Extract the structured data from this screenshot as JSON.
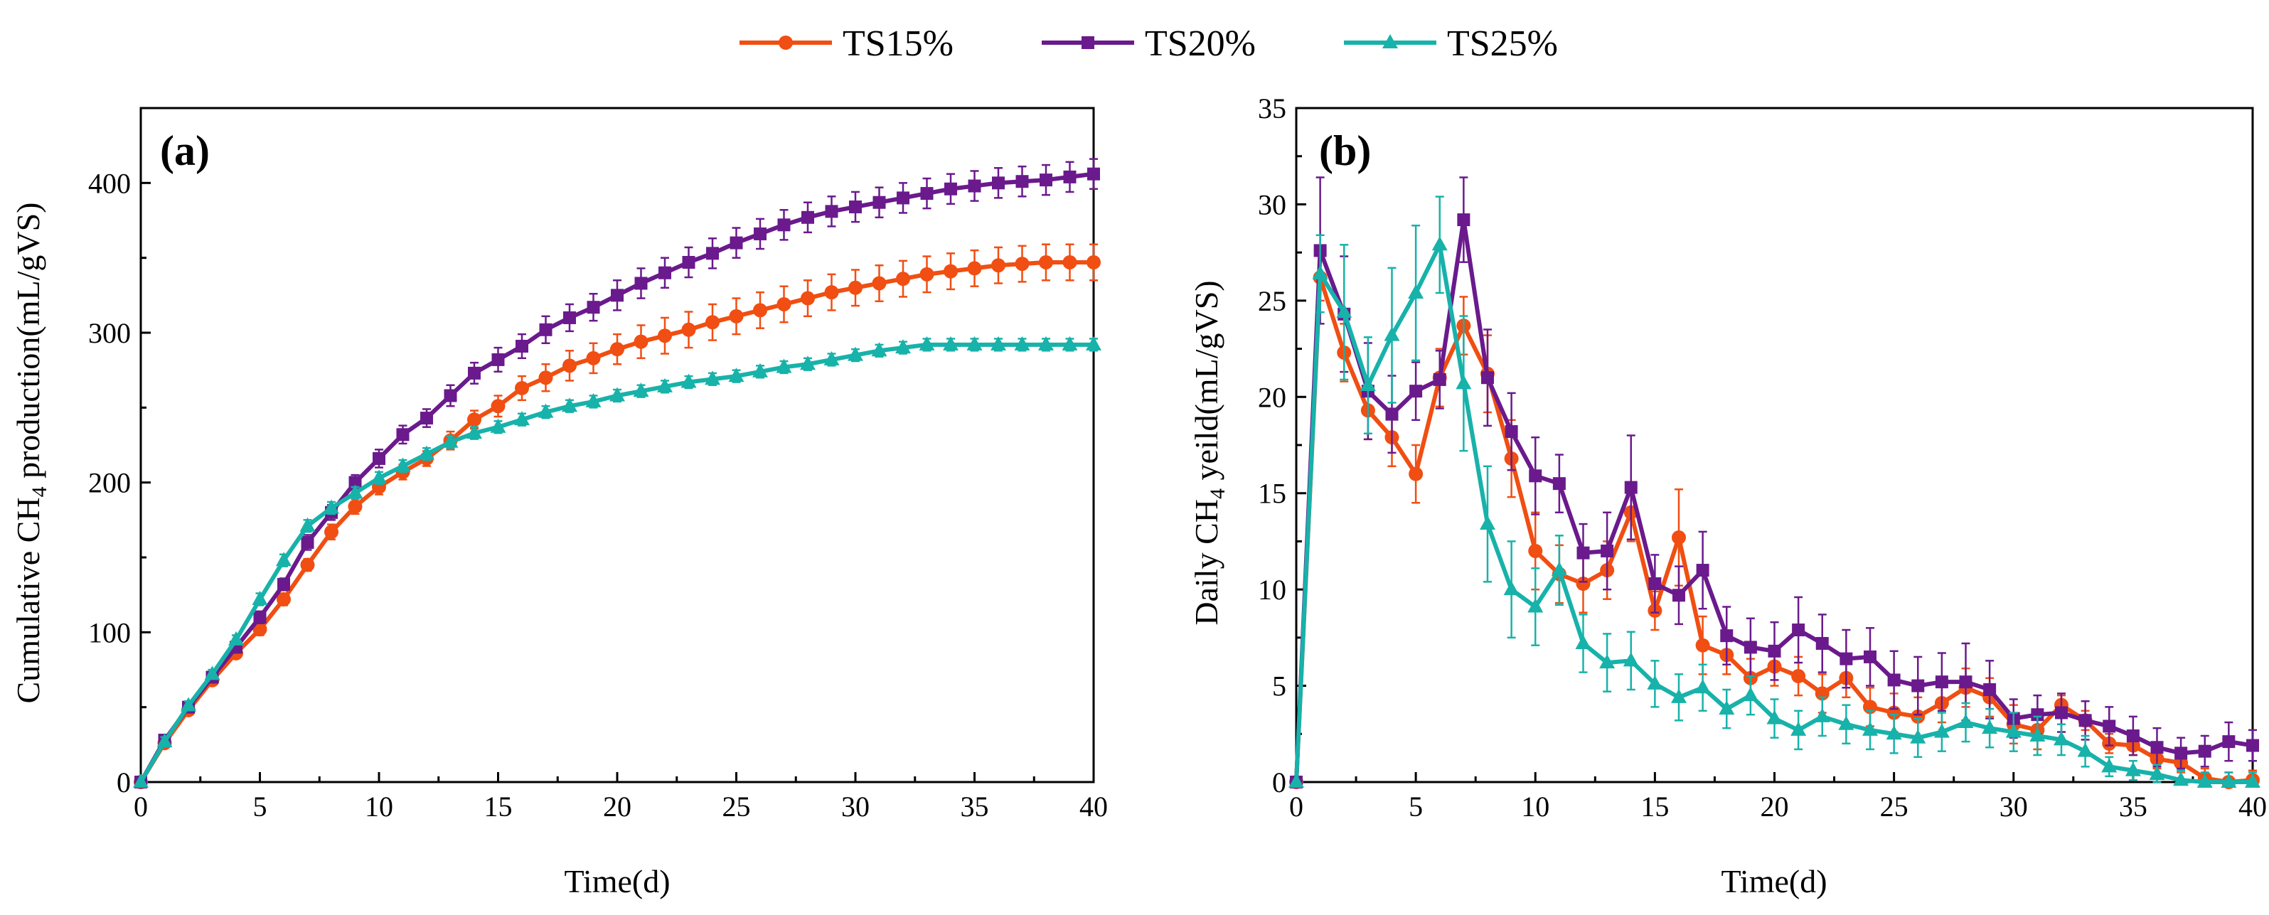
{
  "legend": [
    {
      "name": "TS15%",
      "color": "#f04e12",
      "marker": "circle"
    },
    {
      "name": "TS20%",
      "color": "#6a1a8c",
      "marker": "square"
    },
    {
      "name": "TS25%",
      "color": "#17b2aa",
      "marker": "triangle"
    }
  ],
  "chart_data": [
    {
      "type": "line",
      "panel_label": "(a)",
      "title": "",
      "xlabel": "Time(d)",
      "ylabel_prefix": "Cumulative CH",
      "ylabel_subscript": "4",
      "ylabel_suffix": " production(mL/gVS)",
      "xlim": [
        0,
        40
      ],
      "ylim": [
        0,
        450
      ],
      "xticks": [
        0,
        5,
        10,
        15,
        20,
        25,
        30,
        35,
        40
      ],
      "yticks": [
        0,
        100,
        200,
        300,
        400
      ],
      "grid": false,
      "legend_position": "top-center",
      "x": [
        0,
        1,
        2,
        3,
        4,
        5,
        6,
        7,
        8,
        9,
        10,
        11,
        12,
        13,
        14,
        15,
        16,
        17,
        18,
        19,
        20,
        21,
        22,
        23,
        24,
        25,
        26,
        27,
        28,
        29,
        30,
        31,
        32,
        33,
        34,
        35,
        36,
        37,
        38,
        39,
        40
      ],
      "series": [
        {
          "name": "TS15%",
          "color": "#f04e12",
          "marker": "circle",
          "values": [
            0,
            26,
            48,
            68,
            86,
            102,
            122,
            145,
            167,
            184,
            197,
            207,
            216,
            228,
            242,
            251,
            263,
            270,
            278,
            283,
            289,
            294,
            298,
            302,
            307,
            311,
            315,
            319,
            323,
            327,
            330,
            333,
            336,
            339,
            341,
            343,
            345,
            346,
            347,
            347,
            347
          ],
          "errors": [
            0,
            3,
            3,
            3,
            3,
            4,
            4,
            4,
            5,
            5,
            5,
            5,
            5,
            6,
            6,
            7,
            8,
            9,
            10,
            10,
            10,
            11,
            12,
            12,
            12,
            12,
            12,
            12,
            12,
            12,
            12,
            12,
            12,
            12,
            12,
            12,
            12,
            12,
            12,
            12,
            12
          ]
        },
        {
          "name": "TS20%",
          "color": "#6a1a8c",
          "marker": "square",
          "values": [
            0,
            28,
            50,
            70,
            90,
            110,
            132,
            160,
            180,
            200,
            216,
            232,
            243,
            258,
            273,
            282,
            291,
            302,
            310,
            317,
            325,
            333,
            340,
            347,
            353,
            360,
            366,
            372,
            377,
            381,
            384,
            387,
            390,
            393,
            396,
            398,
            400,
            401,
            402,
            404,
            406
          ],
          "errors": [
            0,
            3,
            3,
            3,
            3,
            4,
            4,
            5,
            5,
            5,
            6,
            6,
            6,
            7,
            7,
            8,
            8,
            9,
            9,
            9,
            10,
            10,
            10,
            10,
            10,
            10,
            10,
            10,
            10,
            10,
            10,
            10,
            10,
            10,
            10,
            10,
            10,
            10,
            10,
            10,
            10
          ]
        },
        {
          "name": "TS25%",
          "color": "#17b2aa",
          "marker": "triangle",
          "values": [
            0,
            27,
            51,
            72,
            95,
            122,
            148,
            171,
            183,
            193,
            203,
            211,
            219,
            227,
            233,
            237,
            242,
            247,
            251,
            254,
            258,
            261,
            264,
            267,
            269,
            271,
            274,
            277,
            279,
            282,
            285,
            288,
            290,
            292,
            292,
            292,
            292,
            292,
            292,
            292,
            292
          ],
          "errors": [
            0,
            3,
            3,
            3,
            3,
            4,
            4,
            4,
            4,
            4,
            4,
            4,
            4,
            4,
            4,
            4,
            4,
            4,
            4,
            4,
            4,
            4,
            4,
            4,
            4,
            4,
            4,
            4,
            4,
            4,
            4,
            4,
            4,
            4,
            4,
            4,
            4,
            4,
            4,
            4,
            4
          ]
        }
      ]
    },
    {
      "type": "line",
      "panel_label": "(b)",
      "title": "",
      "xlabel": "Time(d)",
      "ylabel_prefix": "Daily CH",
      "ylabel_subscript": "4",
      "ylabel_suffix": " yeild(mL/gVS)",
      "xlim": [
        0,
        40
      ],
      "ylim": [
        0,
        35
      ],
      "xticks": [
        0,
        5,
        10,
        15,
        20,
        25,
        30,
        35,
        40
      ],
      "yticks": [
        0,
        5,
        10,
        15,
        20,
        25,
        30,
        35
      ],
      "grid": false,
      "x": [
        0,
        1,
        2,
        3,
        4,
        5,
        6,
        7,
        8,
        9,
        10,
        11,
        12,
        13,
        14,
        15,
        16,
        17,
        18,
        19,
        20,
        21,
        22,
        23,
        24,
        25,
        26,
        27,
        28,
        29,
        30,
        31,
        32,
        33,
        34,
        35,
        36,
        37,
        38,
        39,
        40
      ],
      "series": [
        {
          "name": "TS15%",
          "color": "#f04e12",
          "marker": "circle",
          "values": [
            0,
            26.2,
            22.3,
            19.3,
            17.9,
            16.0,
            21.0,
            23.7,
            21.2,
            16.8,
            12.0,
            10.8,
            10.3,
            11.0,
            14.0,
            8.9,
            12.7,
            7.1,
            6.6,
            5.4,
            6.0,
            5.5,
            4.6,
            5.4,
            3.9,
            3.6,
            3.4,
            4.1,
            4.9,
            4.4,
            3.0,
            2.7,
            4.0,
            3.2,
            2.0,
            1.9,
            1.2,
            1.0,
            0.2,
            0.0,
            0.1
          ],
          "errors": [
            0,
            1.2,
            1.5,
            1.5,
            1.5,
            1.5,
            1.5,
            1.5,
            2.0,
            2.0,
            2.0,
            1.5,
            1.5,
            1.5,
            1.5,
            1.0,
            2.5,
            1.5,
            1.0,
            1.0,
            1.0,
            1.0,
            1.0,
            1.0,
            1.0,
            1.0,
            1.0,
            1.0,
            1.0,
            1.0,
            1.0,
            1.0,
            0.5,
            0.5,
            0.5,
            0.5,
            0.5,
            0.5,
            0.5,
            0.5,
            0.5
          ]
        },
        {
          "name": "TS20%",
          "color": "#6a1a8c",
          "marker": "square",
          "values": [
            0,
            27.6,
            24.3,
            20.3,
            19.1,
            20.3,
            20.9,
            29.2,
            21.0,
            18.2,
            15.9,
            15.5,
            11.9,
            12.0,
            15.3,
            10.3,
            9.7,
            11.0,
            7.6,
            7.0,
            6.8,
            7.9,
            7.2,
            6.4,
            6.5,
            5.3,
            5.0,
            5.2,
            5.2,
            4.8,
            3.3,
            3.5,
            3.6,
            3.2,
            2.9,
            2.4,
            1.8,
            1.5,
            1.6,
            2.1,
            1.9
          ],
          "errors": [
            0,
            3.8,
            3.0,
            2.5,
            2.0,
            1.5,
            1.5,
            2.2,
            2.5,
            2.0,
            2.0,
            1.5,
            1.5,
            2.0,
            2.7,
            1.5,
            1.5,
            2.0,
            1.5,
            1.5,
            1.5,
            1.7,
            1.5,
            1.5,
            1.5,
            1.5,
            1.5,
            1.5,
            2.0,
            1.5,
            1.0,
            1.0,
            1.0,
            1.0,
            1.0,
            1.0,
            1.0,
            0.8,
            0.8,
            1.0,
            0.8
          ]
        },
        {
          "name": "TS25%",
          "color": "#17b2aa",
          "marker": "triangle",
          "values": [
            0,
            26.4,
            24.4,
            20.6,
            23.2,
            25.4,
            27.9,
            20.7,
            13.4,
            10.0,
            9.1,
            11.0,
            7.2,
            6.2,
            6.3,
            5.1,
            4.4,
            4.9,
            3.8,
            4.5,
            3.3,
            2.7,
            3.4,
            3.0,
            2.7,
            2.5,
            2.3,
            2.6,
            3.1,
            2.8,
            2.6,
            2.4,
            2.2,
            1.6,
            0.8,
            0.6,
            0.4,
            0.1,
            0.0,
            0.0,
            0.0
          ],
          "errors": [
            0,
            2.0,
            3.5,
            2.5,
            3.5,
            3.5,
            2.5,
            3.5,
            3.0,
            2.5,
            2.0,
            1.8,
            1.5,
            1.5,
            1.5,
            1.2,
            1.2,
            1.2,
            1.0,
            1.0,
            1.0,
            1.0,
            1.0,
            1.0,
            1.0,
            1.0,
            1.0,
            1.0,
            1.0,
            1.0,
            1.0,
            1.0,
            0.8,
            0.8,
            0.5,
            0.5,
            0.5,
            0.5,
            0.5,
            0.5,
            0.5
          ]
        }
      ]
    }
  ]
}
